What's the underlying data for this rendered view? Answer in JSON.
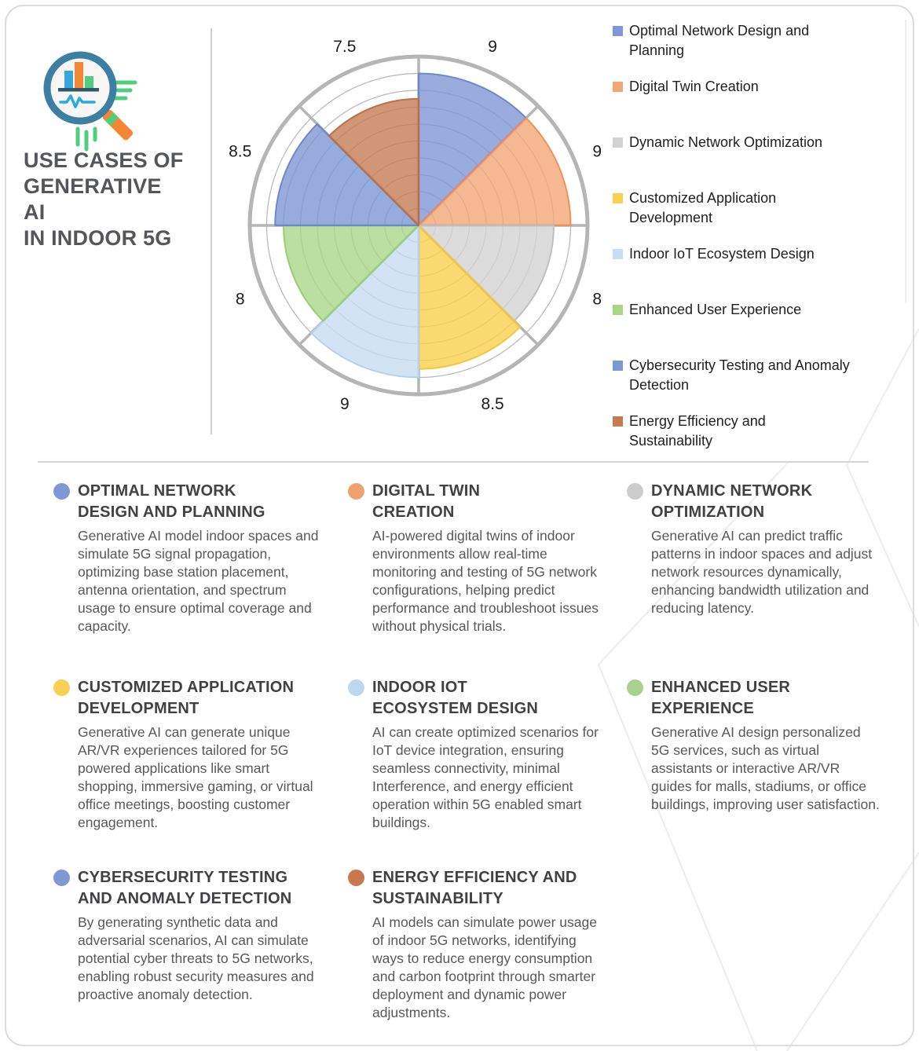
{
  "header": {
    "title": "USE CASES OF\nGENERATIVE\nAI\nIN INDOOR 5G",
    "logo_icon": "magnifier-bar-chart-icon"
  },
  "chart_data": {
    "type": "polar_area",
    "title": "",
    "categories": [
      "Optimal Network Design and Planning",
      "Digital Twin Creation",
      "Dynamic Network Optimization",
      "Customized Application Development",
      "Indoor IoT Ecosystem Design",
      "Enhanced User Experience",
      "Cybersecurity Testing and Anomaly Detection",
      "Energy Efficiency and Sustainability"
    ],
    "values": [
      9,
      9,
      8,
      8.5,
      9,
      8,
      8.5,
      7.5
    ],
    "tick_labels": [
      "9",
      "9",
      "8",
      "8.5",
      "9",
      "8",
      "8.5",
      "7.5"
    ],
    "scale": {
      "min": 0,
      "max": 10,
      "grid_step": 1
    },
    "start_angle_deg": 0,
    "direction": "clockwise",
    "grid": true,
    "legend_position": "right",
    "colors": [
      {
        "fill": "#7f97d4",
        "border": "#6d87c6"
      },
      {
        "fill": "#f2a674",
        "border": "#eb9257"
      },
      {
        "fill": "#d2d2d2",
        "border": "#bfbfbf"
      },
      {
        "fill": "#f8d14e",
        "border": "#f2c53c"
      },
      {
        "fill": "#c7ddf1",
        "border": "#b5d1ea"
      },
      {
        "fill": "#a9d788",
        "border": "#98cd72"
      },
      {
        "fill": "#7d96d5",
        "border": "#6b85c7"
      },
      {
        "fill": "#c67c52",
        "border": "#ba6d41"
      }
    ],
    "style": {
      "grid_color": "#b7b7b7",
      "axis_color": "#b5b5b5",
      "label_radius": 246,
      "label_color": "#1c1c1c",
      "label_font_size": 21
    }
  },
  "legend": {
    "items": [
      {
        "label": "Optimal Network Design and\nPlanning",
        "color": "#7f97d4"
      },
      {
        "label": "Digital Twin Creation",
        "color": "#f2a674"
      },
      {
        "label": "Dynamic Network Optimization",
        "color": "#d2d2d2"
      },
      {
        "label": "Customized Application\nDevelopment",
        "color": "#f8d14e"
      },
      {
        "label": "Indoor IoT Ecosystem Design",
        "color": "#c7ddf1"
      },
      {
        "label": "Enhanced User Experience",
        "color": "#a9d788"
      },
      {
        "label": "Cybersecurity Testing and Anomaly\nDetection",
        "color": "#7d96d5"
      },
      {
        "label": "Energy Efficiency and\nSustainability",
        "color": "#c67c52"
      }
    ]
  },
  "sections": [
    {
      "heading": "OPTIMAL NETWORK\nDESIGN AND PLANNING",
      "color": "#8098d6",
      "body": "Generative AI model indoor spaces and simulate 5G signal propagation, optimizing base station placement, antenna orientation, and spectrum usage to ensure optimal coverage and capacity."
    },
    {
      "heading": "DIGITAL TWIN\nCREATION",
      "color": "#f0a170",
      "body": "AI-powered digital twins of indoor environments allow real-time monitoring and testing of 5G network configurations, helping predict performance and troubleshoot issues without physical trials."
    },
    {
      "heading": "DYNAMIC NETWORK\nOPTIMIZATION",
      "color": "#cccccc",
      "body": "Generative AI can predict traffic patterns in indoor spaces and adjust network resources dynamically, enhancing bandwidth utilization and reducing latency."
    },
    {
      "heading": "CUSTOMIZED APPLICATION\nDEVELOPMENT",
      "color": "#f7d055",
      "body": "Generative AI can generate unique AR/VR experiences tailored for 5G powered applications like smart shopping, immersive gaming, or virtual office meetings, boosting customer engagement."
    },
    {
      "heading": "INDOOR IOT\nECOSYSTEM DESIGN",
      "color": "#bdd7ee",
      "body": "AI can create optimized scenarios for IoT device integration, ensuring seamless connectivity, minimal Interference, and energy efficient operation within 5G enabled smart buildings."
    },
    {
      "heading": "ENHANCED USER\nEXPERIENCE",
      "color": "#a9d18e",
      "body": "Generative AI design personalized 5G services, such as virtual assistants or interactive AR/VR guides for malls, stadiums, or office buildings, improving user satisfaction."
    },
    {
      "heading": "CYBERSECURITY TESTING\nAND ANOMALY DETECTION",
      "color": "#8098d6",
      "body": "By generating synthetic data and adversarial scenarios, AI can simulate potential cyber threats to 5G networks, enabling robust security measures and proactive anomaly detection."
    },
    {
      "heading": "ENERGY EFFICIENCY AND\nSUSTAINABILITY",
      "color": "#c9784e",
      "body": "AI models can simulate power usage of indoor 5G networks, identifying ways to reduce energy consumption and carbon footprint through smarter deployment and dynamic power adjustments."
    }
  ]
}
